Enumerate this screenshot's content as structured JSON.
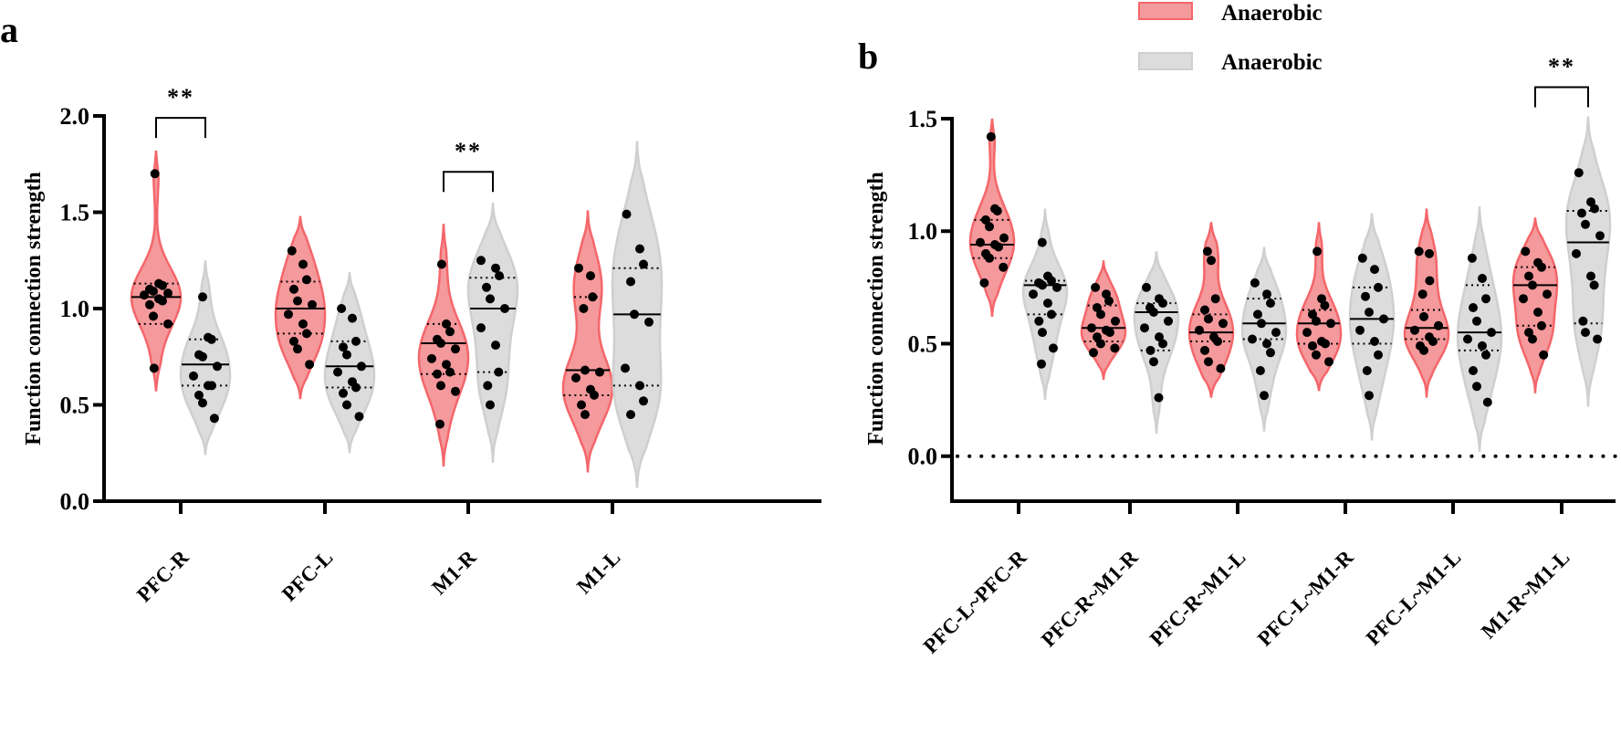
{
  "legend": [
    {
      "label": "Anaerobic",
      "color": "#f4666a",
      "fill": "#f4999c"
    },
    {
      "label": "Anaerobic",
      "color": "#cfcfcf",
      "fill": "#dcdcdc"
    }
  ],
  "chart_data": [
    {
      "type": "violin",
      "panel": "a",
      "ylabel": "Function connection strength",
      "ylim": [
        0,
        2.0
      ],
      "yticks": [
        "0.0",
        "0.5",
        "1.0",
        "1.5",
        "2.0"
      ],
      "categories": [
        "PFC-R",
        "PFC-L",
        "M1-R",
        "M1-L"
      ],
      "groups": [
        {
          "category": "PFC-R",
          "group": 0,
          "min": 0.57,
          "max": 1.82,
          "median": 1.06,
          "q1": 0.92,
          "q3": 1.13,
          "points": [
            1.7,
            1.13,
            1.12,
            1.1,
            1.09,
            1.08,
            1.07,
            1.05,
            1.04,
            1.02,
            0.96,
            0.92,
            0.69
          ]
        },
        {
          "category": "PFC-R",
          "group": 1,
          "min": 0.24,
          "max": 1.25,
          "median": 0.71,
          "q1": 0.6,
          "q3": 0.84,
          "points": [
            1.06,
            0.85,
            0.84,
            0.76,
            0.75,
            0.7,
            0.65,
            0.6,
            0.6,
            0.55,
            0.51,
            0.43
          ]
        },
        {
          "category": "PFC-L",
          "group": 0,
          "min": 0.53,
          "max": 1.48,
          "median": 1.0,
          "q1": 0.87,
          "q3": 1.14,
          "points": [
            1.3,
            1.23,
            1.15,
            1.1,
            1.04,
            1.02,
            0.97,
            0.92,
            0.87,
            0.83,
            0.79,
            0.71
          ]
        },
        {
          "category": "PFC-L",
          "group": 1,
          "min": 0.25,
          "max": 1.19,
          "median": 0.7,
          "q1": 0.59,
          "q3": 0.83,
          "points": [
            1.0,
            0.95,
            0.83,
            0.8,
            0.76,
            0.7,
            0.67,
            0.62,
            0.59,
            0.56,
            0.5,
            0.44
          ]
        },
        {
          "category": "M1-R",
          "group": 0,
          "min": 0.18,
          "max": 1.44,
          "median": 0.82,
          "q1": 0.66,
          "q3": 0.92,
          "points": [
            1.23,
            0.92,
            0.88,
            0.84,
            0.82,
            0.79,
            0.74,
            0.71,
            0.67,
            0.66,
            0.6,
            0.57,
            0.4
          ]
        },
        {
          "category": "M1-R",
          "group": 1,
          "min": 0.2,
          "max": 1.55,
          "median": 1.0,
          "q1": 0.67,
          "q3": 1.16,
          "points": [
            1.25,
            1.21,
            1.17,
            1.11,
            1.05,
            1.0,
            0.9,
            0.81,
            0.67,
            0.6,
            0.5
          ]
        },
        {
          "category": "M1-L",
          "group": 0,
          "min": 0.15,
          "max": 1.51,
          "median": 0.68,
          "q1": 0.55,
          "q3": 1.06,
          "points": [
            1.21,
            1.17,
            1.06,
            1.0,
            0.68,
            0.67,
            0.64,
            0.58,
            0.55,
            0.5,
            0.45
          ]
        },
        {
          "category": "M1-L",
          "group": 1,
          "min": 0.07,
          "max": 1.87,
          "median": 0.97,
          "q1": 0.6,
          "q3": 1.21,
          "points": [
            1.49,
            1.31,
            1.23,
            1.14,
            0.97,
            0.93,
            0.69,
            0.6,
            0.52,
            0.45
          ]
        }
      ],
      "significance": [
        {
          "category": "PFC-R",
          "label": "**",
          "bracket_y": 1.99
        },
        {
          "category": "M1-R",
          "label": "**",
          "bracket_y": 1.71
        }
      ]
    },
    {
      "type": "violin",
      "panel": "b",
      "ylabel": "Function connection strength",
      "ylim": [
        -0.2,
        1.5
      ],
      "yticks": [
        "0.0",
        "0.5",
        "1.0",
        "1.5"
      ],
      "reference_line": 0,
      "categories": [
        "PFC-L~PFC-R",
        "PFC-R~M1-R",
        "PFC-R~M1-L",
        "PFC-L~M1-R",
        "PFC-L~M1-L",
        "M1-R~M1-L"
      ],
      "groups": [
        {
          "category": "PFC-L~PFC-R",
          "group": 0,
          "min": 0.62,
          "max": 1.5,
          "median": 0.94,
          "q1": 0.88,
          "q3": 1.05,
          "points": [
            1.42,
            1.1,
            1.09,
            1.05,
            1.02,
            0.97,
            0.95,
            0.94,
            0.93,
            0.9,
            0.88,
            0.84,
            0.77
          ]
        },
        {
          "category": "PFC-L~PFC-R",
          "group": 1,
          "min": 0.25,
          "max": 1.1,
          "median": 0.76,
          "q1": 0.63,
          "q3": 0.78,
          "points": [
            0.95,
            0.8,
            0.78,
            0.77,
            0.76,
            0.75,
            0.72,
            0.68,
            0.63,
            0.6,
            0.55,
            0.48,
            0.41
          ]
        },
        {
          "category": "PFC-R~M1-R",
          "group": 0,
          "min": 0.34,
          "max": 0.87,
          "median": 0.57,
          "q1": 0.51,
          "q3": 0.67,
          "points": [
            0.75,
            0.72,
            0.69,
            0.66,
            0.63,
            0.6,
            0.57,
            0.56,
            0.55,
            0.53,
            0.5,
            0.48,
            0.46
          ]
        },
        {
          "category": "PFC-R~M1-R",
          "group": 1,
          "min": 0.1,
          "max": 0.91,
          "median": 0.64,
          "q1": 0.47,
          "q3": 0.68,
          "points": [
            0.75,
            0.7,
            0.68,
            0.66,
            0.64,
            0.6,
            0.57,
            0.53,
            0.5,
            0.47,
            0.42,
            0.26
          ]
        },
        {
          "category": "PFC-R~M1-L",
          "group": 0,
          "min": 0.26,
          "max": 1.04,
          "median": 0.55,
          "q1": 0.51,
          "q3": 0.63,
          "points": [
            0.91,
            0.87,
            0.7,
            0.65,
            0.61,
            0.59,
            0.56,
            0.53,
            0.51,
            0.47,
            0.42,
            0.39
          ]
        },
        {
          "category": "PFC-R~M1-L",
          "group": 1,
          "min": 0.11,
          "max": 0.93,
          "median": 0.59,
          "q1": 0.52,
          "q3": 0.7,
          "points": [
            0.77,
            0.72,
            0.68,
            0.63,
            0.59,
            0.55,
            0.52,
            0.5,
            0.46,
            0.38,
            0.27
          ]
        },
        {
          "category": "PFC-L~M1-R",
          "group": 0,
          "min": 0.29,
          "max": 1.04,
          "median": 0.59,
          "q1": 0.5,
          "q3": 0.65,
          "points": [
            0.91,
            0.7,
            0.67,
            0.63,
            0.6,
            0.59,
            0.55,
            0.51,
            0.5,
            0.49,
            0.45,
            0.42
          ]
        },
        {
          "category": "PFC-L~M1-R",
          "group": 1,
          "min": 0.07,
          "max": 1.08,
          "median": 0.61,
          "q1": 0.5,
          "q3": 0.75,
          "points": [
            0.88,
            0.83,
            0.75,
            0.71,
            0.64,
            0.61,
            0.56,
            0.51,
            0.45,
            0.38,
            0.27
          ]
        },
        {
          "category": "PFC-L~M1-L",
          "group": 0,
          "min": 0.26,
          "max": 1.1,
          "median": 0.57,
          "q1": 0.52,
          "q3": 0.65,
          "points": [
            0.91,
            0.9,
            0.78,
            0.72,
            0.62,
            0.58,
            0.56,
            0.53,
            0.51,
            0.49,
            0.47
          ]
        },
        {
          "category": "PFC-L~M1-L",
          "group": 1,
          "min": 0.02,
          "max": 1.11,
          "median": 0.55,
          "q1": 0.47,
          "q3": 0.76,
          "points": [
            0.88,
            0.79,
            0.7,
            0.66,
            0.6,
            0.55,
            0.52,
            0.49,
            0.45,
            0.38,
            0.31,
            0.24
          ]
        },
        {
          "category": "M1-R~M1-L",
          "group": 0,
          "min": 0.28,
          "max": 1.06,
          "median": 0.76,
          "q1": 0.58,
          "q3": 0.84,
          "points": [
            0.91,
            0.86,
            0.84,
            0.8,
            0.76,
            0.72,
            0.7,
            0.64,
            0.58,
            0.55,
            0.52,
            0.45
          ]
        },
        {
          "category": "M1-R~M1-L",
          "group": 1,
          "min": 0.22,
          "max": 1.51,
          "median": 0.95,
          "q1": 0.59,
          "q3": 1.09,
          "points": [
            1.26,
            1.13,
            1.1,
            1.08,
            1.03,
            0.98,
            0.9,
            0.8,
            0.76,
            0.6,
            0.55,
            0.52
          ]
        }
      ],
      "significance": [
        {
          "category": "M1-R~M1-L",
          "label": "**",
          "bracket_y": 1.64
        }
      ]
    }
  ],
  "panel_labels": [
    "a",
    "b"
  ]
}
